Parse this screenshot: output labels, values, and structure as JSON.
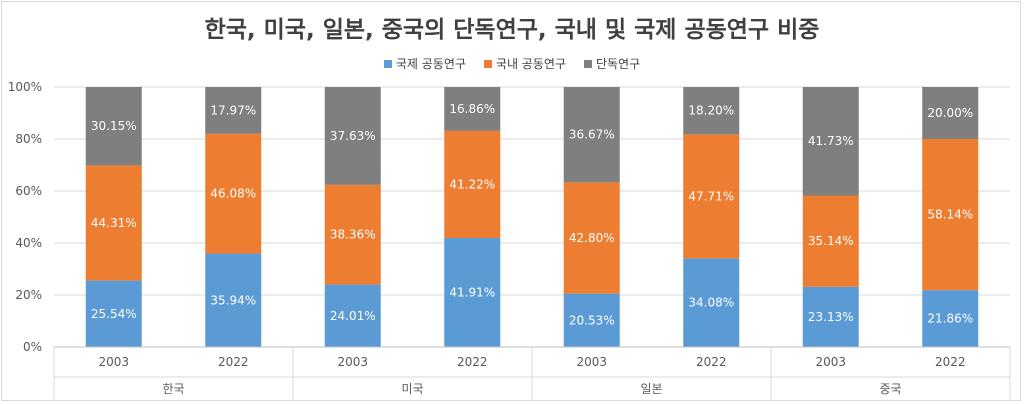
{
  "chart_data": {
    "type": "bar",
    "stacked": true,
    "percent": true,
    "title": "한국, 미국, 일본, 중국의 단독연구, 국내 및 국제 공동연구 비중",
    "legend_position": "top",
    "ylim": [
      0,
      100
    ],
    "y_ticks": [
      "0%",
      "20%",
      "40%",
      "60%",
      "80%",
      "100%"
    ],
    "grid": true,
    "groups": [
      "한국",
      "미국",
      "일본",
      "중국"
    ],
    "categories": [
      "2003",
      "2022",
      "2003",
      "2022",
      "2003",
      "2022",
      "2003",
      "2022"
    ],
    "series": [
      {
        "name": "국제 공동연구",
        "color": "#5b9bd5",
        "values": [
          25.54,
          35.94,
          24.01,
          41.91,
          20.53,
          34.08,
          23.13,
          21.86
        ],
        "labels": [
          "25.54%",
          "35.94%",
          "24.01%",
          "41.91%",
          "20.53%",
          "34.08%",
          "23.13%",
          "21.86%"
        ]
      },
      {
        "name": "국내 공동연구",
        "color": "#ed7d31",
        "values": [
          44.31,
          46.08,
          38.36,
          41.22,
          42.8,
          47.71,
          35.14,
          58.14
        ],
        "labels": [
          "44.31%",
          "46.08%",
          "38.36%",
          "41.22%",
          "42.80%",
          "47.71%",
          "35.14%",
          "58.14%"
        ]
      },
      {
        "name": "단독연구",
        "color": "#7f7f7f",
        "values": [
          30.15,
          17.97,
          37.63,
          16.86,
          36.67,
          18.2,
          41.73,
          20.0
        ],
        "labels": [
          "30.15%",
          "17.97%",
          "37.63%",
          "16.86%",
          "36.67%",
          "18.20%",
          "41.73%",
          "20.00%"
        ]
      }
    ]
  }
}
